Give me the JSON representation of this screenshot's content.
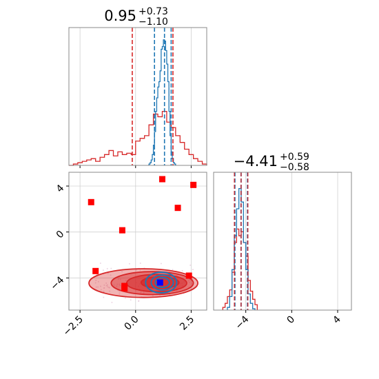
{
  "colors": {
    "blue": "#1f77b4",
    "red": "#d62728",
    "marker_red": "#ff0000",
    "marker_blue": "#0000ff",
    "grid": "#d0d0d0",
    "spine": "#888888"
  },
  "chart_data": {
    "type": "corner",
    "grid": true,
    "parameters": [
      {
        "title_median": "0.95",
        "title_plus": "+0.73",
        "title_minus": "−1.10",
        "range": [
          -3.0,
          3.2
        ],
        "ticks": [
          -2.5,
          0.0,
          2.5
        ],
        "tick_labels": [
          "−2.5",
          "0.0",
          "2.5"
        ]
      },
      {
        "title_median": "−4.41",
        "title_plus": "+0.59",
        "title_minus": "−0.58",
        "range": [
          -6.8,
          5.2
        ],
        "ticks": [
          -4,
          0,
          4
        ],
        "tick_labels": [
          "−4",
          "0",
          "4"
        ]
      }
    ],
    "y_ticks": [
      -4,
      0,
      4
    ],
    "y_tick_labels": [
      "−4",
      "0",
      "4"
    ],
    "quantile_lines": {
      "blue_param1": [
        0.85,
        1.3,
        1.6
      ],
      "red_param1": [
        -0.15,
        0.95,
        1.68
      ],
      "blue_param2": [
        -4.95,
        -4.41,
        -3.85
      ],
      "red_param2": [
        -4.99,
        -4.41,
        -3.82
      ]
    },
    "hist_param1_blue": {
      "edges": [
        0.6,
        0.65,
        0.7,
        0.75,
        0.8,
        0.85,
        0.9,
        0.95,
        1.0,
        1.05,
        1.1,
        1.15,
        1.2,
        1.25,
        1.3,
        1.35,
        1.4,
        1.45,
        1.5,
        1.55,
        1.6,
        1.65,
        1.7,
        1.75,
        1.8
      ],
      "counts": [
        0.01,
        0.02,
        0.04,
        0.08,
        0.15,
        0.25,
        0.4,
        0.5,
        0.58,
        0.62,
        0.7,
        0.86,
        0.88,
        0.93,
        0.92,
        0.85,
        0.75,
        0.62,
        0.4,
        0.22,
        0.1,
        0.05,
        0.02,
        0.01
      ]
    },
    "hist_param1_red": {
      "edges": [
        -3.0,
        -2.8,
        -2.6,
        -2.4,
        -2.2,
        -2.0,
        -1.8,
        -1.6,
        -1.4,
        -1.2,
        -1.0,
        -0.8,
        -0.6,
        -0.4,
        -0.2,
        0.0,
        0.2,
        0.4,
        0.6,
        0.8,
        1.0,
        1.2,
        1.4,
        1.6,
        1.8,
        2.0,
        2.2,
        2.4,
        2.6,
        2.8,
        3.0,
        3.2
      ],
      "counts": [
        0.0,
        0.01,
        0.02,
        0.03,
        0.04,
        0.05,
        0.03,
        0.06,
        0.08,
        0.11,
        0.07,
        0.1,
        0.08,
        0.09,
        0.08,
        0.18,
        0.2,
        0.22,
        0.3,
        0.38,
        0.36,
        0.4,
        0.32,
        0.28,
        0.22,
        0.17,
        0.12,
        0.08,
        0.05,
        0.03,
        0.01
      ]
    },
    "hist_param2_blue": {
      "edges": [
        -5.6,
        -5.4,
        -5.2,
        -5.0,
        -4.8,
        -4.6,
        -4.4,
        -4.2,
        -4.0,
        -3.8,
        -3.6,
        -3.4,
        -3.2
      ],
      "counts": [
        0.02,
        0.1,
        0.3,
        0.55,
        0.75,
        0.9,
        0.8,
        0.5,
        0.3,
        0.12,
        0.05,
        0.01
      ]
    },
    "hist_param2_red": {
      "edges": [
        -6.0,
        -5.8,
        -5.6,
        -5.4,
        -5.2,
        -5.0,
        -4.8,
        -4.6,
        -4.4,
        -4.2,
        -4.0,
        -3.8,
        -3.6,
        -3.4,
        -3.2,
        -3.0
      ],
      "counts": [
        0.02,
        0.05,
        0.1,
        0.15,
        0.28,
        0.5,
        0.6,
        0.55,
        0.58,
        0.5,
        0.4,
        0.22,
        0.14,
        0.08,
        0.04
      ]
    },
    "scatter_points": [
      {
        "x": -2.0,
        "y": 2.6
      },
      {
        "x": 1.2,
        "y": 4.6
      },
      {
        "x": 2.6,
        "y": 4.1
      },
      {
        "x": 1.9,
        "y": 2.1
      },
      {
        "x": -0.6,
        "y": 0.15
      },
      {
        "x": -1.8,
        "y": -3.4
      },
      {
        "x": 2.4,
        "y": -3.8
      },
      {
        "x": -0.5,
        "y": -4.7
      },
      {
        "x": -0.5,
        "y": -4.9
      }
    ],
    "truth_point": {
      "x": 1.1,
      "y": -4.4
    },
    "contours_red": [
      {
        "cx": 0.35,
        "cy": -4.45,
        "rx": 2.45,
        "ry": 1.25
      },
      {
        "cx": 0.75,
        "cy": -4.45,
        "rx": 1.85,
        "ry": 1.0
      },
      {
        "cx": 0.95,
        "cy": -4.45,
        "rx": 1.35,
        "ry": 0.75
      },
      {
        "cx": 1.1,
        "cy": -4.4,
        "rx": 0.85,
        "ry": 0.5
      }
    ],
    "contours_blue": [
      {
        "cx": 1.15,
        "cy": -4.4,
        "rx": 0.7,
        "ry": 0.9
      },
      {
        "cx": 1.2,
        "cy": -4.4,
        "rx": 0.5,
        "ry": 0.65
      },
      {
        "cx": 1.2,
        "cy": -4.4,
        "rx": 0.32,
        "ry": 0.42
      }
    ]
  }
}
